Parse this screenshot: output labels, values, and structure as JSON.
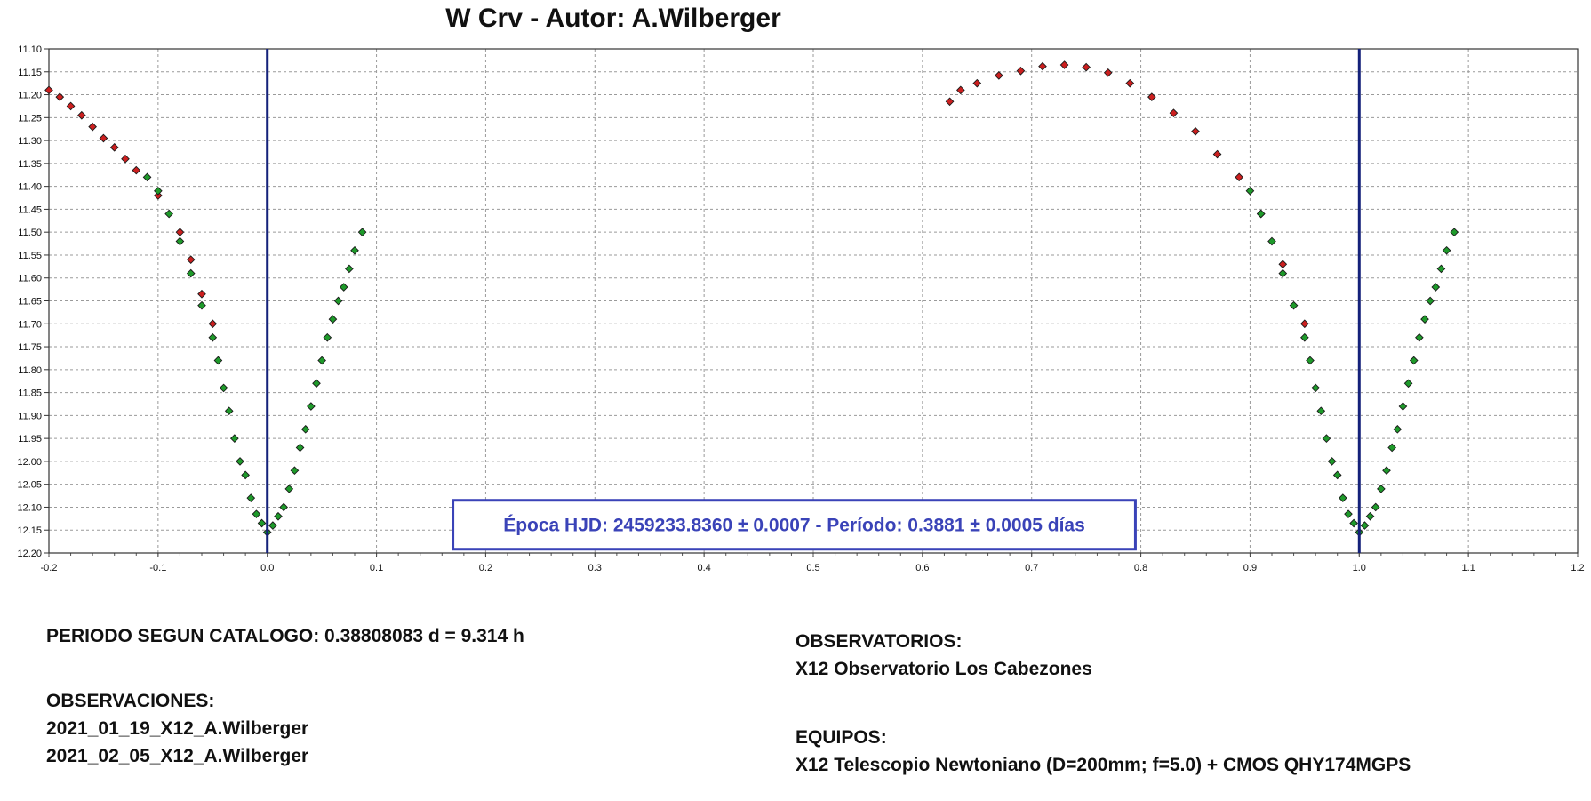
{
  "title": "W Crv - Autor: A.Wilberger",
  "chart_data": {
    "type": "scatter",
    "title": "W Crv - Autor: A.Wilberger",
    "xlim": [
      -0.2,
      1.2
    ],
    "ylim": [
      11.1,
      12.2
    ],
    "y_inverted": true,
    "grid": true,
    "x_ticks": [
      "-0.2",
      "-0.1",
      "0.0",
      "0.1",
      "0.2",
      "0.3",
      "0.4",
      "0.5",
      "0.6",
      "0.7",
      "0.8",
      "0.9",
      "1.0",
      "1.1",
      "1.2"
    ],
    "y_ticks": [
      "11.10",
      "11.15",
      "11.20",
      "11.25",
      "11.30",
      "11.35",
      "11.40",
      "11.45",
      "11.50",
      "11.55",
      "11.60",
      "11.65",
      "11.70",
      "11.75",
      "11.80",
      "11.85",
      "11.90",
      "11.95",
      "12.00",
      "12.05",
      "12.10",
      "12.15",
      "12.20"
    ],
    "vertical_lines": [
      0.0,
      1.0
    ],
    "annotation": "Época HJD: 2459233.8360 ± 0.0007 - Período: 0.3881 ± 0.0005 días",
    "series": [
      {
        "color": "#cc1f1f",
        "points": [
          [
            -0.2,
            11.19
          ],
          [
            -0.19,
            11.205
          ],
          [
            -0.18,
            11.225
          ],
          [
            -0.17,
            11.245
          ],
          [
            -0.16,
            11.27
          ],
          [
            -0.15,
            11.295
          ],
          [
            -0.14,
            11.315
          ],
          [
            -0.13,
            11.34
          ],
          [
            -0.12,
            11.365
          ],
          [
            -0.1,
            11.42
          ],
          [
            -0.08,
            11.5
          ],
          [
            -0.07,
            11.56
          ],
          [
            -0.06,
            11.635
          ],
          [
            -0.05,
            11.7
          ],
          [
            0.625,
            11.215
          ],
          [
            0.635,
            11.19
          ],
          [
            0.65,
            11.175
          ],
          [
            0.67,
            11.158
          ],
          [
            0.69,
            11.148
          ],
          [
            0.71,
            11.138
          ],
          [
            0.73,
            11.135
          ],
          [
            0.75,
            11.14
          ],
          [
            0.77,
            11.152
          ],
          [
            0.79,
            11.175
          ],
          [
            0.81,
            11.205
          ],
          [
            0.83,
            11.24
          ],
          [
            0.85,
            11.28
          ],
          [
            0.87,
            11.33
          ],
          [
            0.89,
            11.38
          ],
          [
            0.91,
            11.46
          ],
          [
            0.93,
            11.57
          ],
          [
            0.95,
            11.7
          ]
        ]
      },
      {
        "color": "#1e9a2a",
        "points": [
          [
            -0.11,
            11.38
          ],
          [
            -0.1,
            11.41
          ],
          [
            -0.09,
            11.46
          ],
          [
            -0.08,
            11.52
          ],
          [
            -0.07,
            11.59
          ],
          [
            -0.06,
            11.66
          ],
          [
            -0.05,
            11.73
          ],
          [
            -0.045,
            11.78
          ],
          [
            -0.04,
            11.84
          ],
          [
            -0.035,
            11.89
          ],
          [
            -0.03,
            11.95
          ],
          [
            -0.025,
            12.0
          ],
          [
            -0.02,
            12.03
          ],
          [
            -0.015,
            12.08
          ],
          [
            -0.01,
            12.115
          ],
          [
            -0.005,
            12.135
          ],
          [
            0.0,
            12.155
          ],
          [
            0.005,
            12.14
          ],
          [
            0.01,
            12.12
          ],
          [
            0.015,
            12.1
          ],
          [
            0.02,
            12.06
          ],
          [
            0.025,
            12.02
          ],
          [
            0.03,
            11.97
          ],
          [
            0.035,
            11.93
          ],
          [
            0.04,
            11.88
          ],
          [
            0.045,
            11.83
          ],
          [
            0.05,
            11.78
          ],
          [
            0.055,
            11.73
          ],
          [
            0.06,
            11.69
          ],
          [
            0.065,
            11.65
          ],
          [
            0.07,
            11.62
          ],
          [
            0.075,
            11.58
          ],
          [
            0.08,
            11.54
          ],
          [
            0.087,
            11.5
          ],
          [
            0.9,
            11.41
          ],
          [
            0.91,
            11.46
          ],
          [
            0.92,
            11.52
          ],
          [
            0.93,
            11.59
          ],
          [
            0.94,
            11.66
          ],
          [
            0.95,
            11.73
          ],
          [
            0.955,
            11.78
          ],
          [
            0.96,
            11.84
          ],
          [
            0.965,
            11.89
          ],
          [
            0.97,
            11.95
          ],
          [
            0.975,
            12.0
          ],
          [
            0.98,
            12.03
          ],
          [
            0.985,
            12.08
          ],
          [
            0.99,
            12.115
          ],
          [
            0.995,
            12.135
          ],
          [
            1.0,
            12.155
          ],
          [
            1.005,
            12.14
          ],
          [
            1.01,
            12.12
          ],
          [
            1.015,
            12.1
          ],
          [
            1.02,
            12.06
          ],
          [
            1.025,
            12.02
          ],
          [
            1.03,
            11.97
          ],
          [
            1.035,
            11.93
          ],
          [
            1.04,
            11.88
          ],
          [
            1.045,
            11.83
          ],
          [
            1.05,
            11.78
          ],
          [
            1.055,
            11.73
          ],
          [
            1.06,
            11.69
          ],
          [
            1.065,
            11.65
          ],
          [
            1.07,
            11.62
          ],
          [
            1.075,
            11.58
          ],
          [
            1.08,
            11.54
          ],
          [
            1.087,
            11.5
          ]
        ]
      }
    ]
  },
  "info": {
    "periodo": "PERIODO SEGUN CATALOGO: 0.38808083 d = 9.314 h",
    "observaciones_header": "OBSERVACIONES:",
    "observaciones": [
      "2021_01_19_X12_A.Wilberger",
      "2021_02_05_X12_A.Wilberger"
    ],
    "observatorios_header": "OBSERVATORIOS:",
    "observatorio": "X12 Observatorio Los Cabezones",
    "equipos_header": "EQUIPOS:",
    "equipo": "X12 Telescopio Newtoniano (D=200mm; f=5.0) + CMOS QHY174MGPS"
  }
}
